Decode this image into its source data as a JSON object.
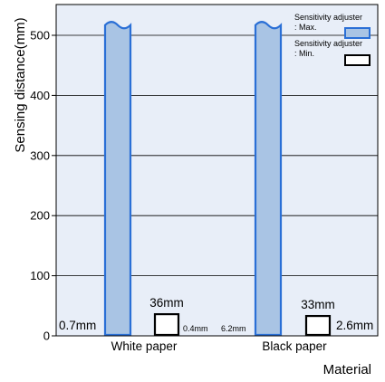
{
  "chart_data": {
    "type": "bar",
    "title": "",
    "ylabel": "Sensing distance(mm)",
    "xlabel": "Material",
    "ylim": [
      0,
      540
    ],
    "yticks": [
      0,
      100,
      200,
      300,
      400,
      500
    ],
    "grid": true,
    "legend_position": "top-right",
    "categories": [
      "White paper",
      "Black paper"
    ],
    "series": [
      {
        "name": "Sensitivity adjuster\n: Max.",
        "color": "#a9c4e4",
        "edge_color": "#2a6fd6",
        "values": [
          520,
          520
        ],
        "low_labels": [
          "0.7mm",
          "6.2mm"
        ],
        "range_min": [
          0.7,
          6.2
        ]
      },
      {
        "name": "Sensitivity adjuster\n: Min.",
        "color": "#ffffff",
        "edge_color": "#000000",
        "values": [
          36,
          33
        ],
        "top_labels": [
          "36mm",
          "33mm"
        ],
        "low_labels": [
          "0.4mm",
          "2.6mm"
        ],
        "range_min": [
          0.4,
          2.6
        ]
      }
    ],
    "colors": {
      "plot_background": "#e8eef8",
      "grid": "#000000"
    }
  }
}
